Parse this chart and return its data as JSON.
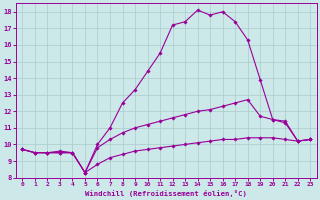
{
  "background_color": "#cce8e8",
  "line_color": "#990099",
  "grid_color": "#aacccc",
  "xlabel": "Windchill (Refroidissement éolien,°C)",
  "xlim": [
    -0.5,
    23.5
  ],
  "ylim": [
    8,
    18.5
  ],
  "yticks": [
    8,
    9,
    10,
    11,
    12,
    13,
    14,
    15,
    16,
    17,
    18
  ],
  "xticks": [
    0,
    1,
    2,
    3,
    4,
    5,
    6,
    7,
    8,
    9,
    10,
    11,
    12,
    13,
    14,
    15,
    16,
    17,
    18,
    19,
    20,
    21,
    22,
    23
  ],
  "series": [
    {
      "x": [
        0,
        1,
        2,
        3,
        4,
        5,
        6,
        7,
        8,
        9,
        10,
        11,
        12,
        13,
        14,
        15,
        16,
        17,
        18,
        19,
        20,
        21,
        22,
        23
      ],
      "y": [
        9.7,
        9.5,
        9.5,
        9.5,
        9.5,
        8.3,
        8.8,
        9.2,
        9.4,
        9.6,
        9.7,
        9.8,
        9.9,
        10.0,
        10.1,
        10.2,
        10.3,
        10.3,
        10.4,
        10.4,
        10.4,
        10.3,
        10.2,
        10.3
      ]
    },
    {
      "x": [
        0,
        1,
        2,
        3,
        4,
        5,
        6,
        7,
        8,
        9,
        10,
        11,
        12,
        13,
        14,
        15,
        16,
        17,
        18,
        19,
        20,
        21,
        22,
        23
      ],
      "y": [
        9.7,
        9.5,
        9.5,
        9.5,
        9.5,
        8.3,
        9.8,
        10.3,
        10.7,
        11.0,
        11.2,
        11.4,
        11.6,
        11.8,
        12.0,
        12.1,
        12.3,
        12.5,
        12.7,
        11.7,
        11.5,
        11.3,
        10.2,
        10.3
      ]
    },
    {
      "x": [
        0,
        1,
        2,
        3,
        4,
        5,
        6,
        7,
        8,
        9,
        10,
        11,
        12,
        13,
        14,
        15,
        16,
        17,
        18,
        19,
        20,
        21,
        22,
        23
      ],
      "y": [
        9.7,
        9.5,
        9.5,
        9.6,
        9.5,
        8.3,
        10.0,
        11.0,
        12.5,
        13.3,
        14.4,
        15.5,
        17.2,
        17.4,
        18.1,
        17.8,
        18.0,
        17.4,
        16.3,
        13.9,
        11.5,
        11.4,
        10.2,
        10.3
      ]
    }
  ]
}
